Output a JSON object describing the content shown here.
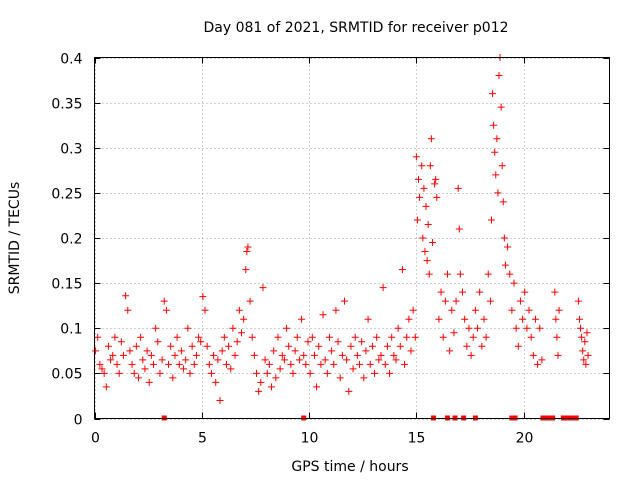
{
  "chart_data": {
    "type": "scatter",
    "title": "Day 081 of 2021, SRMTID for receiver p012",
    "xlabel": "GPS time / hours",
    "ylabel": "SRMTID / TECUs",
    "xlim": [
      0,
      24
    ],
    "ylim": [
      0,
      0.4
    ],
    "x_ticks": [
      "0",
      "5",
      "10",
      "15",
      "20"
    ],
    "x_tick_values": [
      0,
      5,
      10,
      15,
      20
    ],
    "y_ticks": [
      "0",
      "0.05",
      "0.1",
      "0.15",
      "0.2",
      "0.25",
      "0.3",
      "0.35",
      "0.4"
    ],
    "y_tick_values": [
      0,
      0.05,
      0.1,
      0.15,
      0.2,
      0.25,
      0.3,
      0.35,
      0.4
    ],
    "grid": true,
    "marker_color": "#ff0000",
    "series": [
      {
        "name": "SRMTID",
        "marker": "plus",
        "points": [
          [
            0.05,
            0.075
          ],
          [
            0.15,
            0.09
          ],
          [
            0.25,
            0.06
          ],
          [
            0.35,
            0.055
          ],
          [
            0.45,
            0.05
          ],
          [
            0.55,
            0.035
          ],
          [
            0.65,
            0.08
          ],
          [
            0.75,
            0.065
          ],
          [
            0.85,
            0.07
          ],
          [
            0.95,
            0.09
          ],
          [
            1.05,
            0.06
          ],
          [
            1.15,
            0.05
          ],
          [
            1.25,
            0.085
          ],
          [
            1.35,
            0.07
          ],
          [
            1.45,
            0.136
          ],
          [
            1.55,
            0.12
          ],
          [
            1.65,
            0.075
          ],
          [
            1.75,
            0.06
          ],
          [
            1.85,
            0.05
          ],
          [
            1.95,
            0.08
          ],
          [
            2.05,
            0.045
          ],
          [
            2.15,
            0.09
          ],
          [
            2.25,
            0.065
          ],
          [
            2.35,
            0.055
          ],
          [
            2.45,
            0.075
          ],
          [
            2.55,
            0.04
          ],
          [
            2.65,
            0.07
          ],
          [
            2.75,
            0.06
          ],
          [
            2.85,
            0.1
          ],
          [
            2.95,
            0.085
          ],
          [
            3.05,
            0.05
          ],
          [
            3.15,
            0.065
          ],
          [
            3.25,
            0.13
          ],
          [
            3.35,
            0.12
          ],
          [
            3.45,
            0.06
          ],
          [
            3.55,
            0.08
          ],
          [
            3.65,
            0.045
          ],
          [
            3.75,
            0.07
          ],
          [
            3.85,
            0.09
          ],
          [
            3.95,
            0.06
          ],
          [
            4.05,
            0.075
          ],
          [
            4.15,
            0.055
          ],
          [
            4.25,
            0.065
          ],
          [
            4.35,
            0.1
          ],
          [
            4.45,
            0.05
          ],
          [
            4.55,
            0.08
          ],
          [
            4.65,
            0.06
          ],
          [
            4.75,
            0.07
          ],
          [
            4.85,
            0.09
          ],
          [
            4.95,
            0.085
          ],
          [
            5.05,
            0.135
          ],
          [
            5.15,
            0.12
          ],
          [
            5.25,
            0.08
          ],
          [
            5.35,
            0.06
          ],
          [
            5.45,
            0.05
          ],
          [
            5.55,
            0.07
          ],
          [
            5.65,
            0.04
          ],
          [
            5.75,
            0.065
          ],
          [
            5.85,
            0.02
          ],
          [
            5.95,
            0.075
          ],
          [
            6.05,
            0.09
          ],
          [
            6.15,
            0.06
          ],
          [
            6.25,
            0.08
          ],
          [
            6.35,
            0.055
          ],
          [
            6.45,
            0.1
          ],
          [
            6.55,
            0.07
          ],
          [
            6.65,
            0.085
          ],
          [
            6.75,
            0.12
          ],
          [
            6.85,
            0.095
          ],
          [
            6.95,
            0.11
          ],
          [
            7.05,
            0.165
          ],
          [
            7.1,
            0.185
          ],
          [
            7.15,
            0.19
          ],
          [
            7.25,
            0.13
          ],
          [
            7.35,
            0.09
          ],
          [
            7.45,
            0.07
          ],
          [
            7.55,
            0.05
          ],
          [
            7.65,
            0.03
          ],
          [
            7.75,
            0.04
          ],
          [
            7.85,
            0.145
          ],
          [
            7.95,
            0.065
          ],
          [
            8.05,
            0.05
          ],
          [
            8.15,
            0.06
          ],
          [
            8.25,
            0.035
          ],
          [
            8.35,
            0.075
          ],
          [
            8.45,
            0.045
          ],
          [
            8.55,
            0.09
          ],
          [
            8.65,
            0.055
          ],
          [
            8.75,
            0.07
          ],
          [
            8.85,
            0.065
          ],
          [
            8.95,
            0.1
          ],
          [
            9.05,
            0.08
          ],
          [
            9.15,
            0.06
          ],
          [
            9.25,
            0.05
          ],
          [
            9.35,
            0.075
          ],
          [
            9.45,
            0.09
          ],
          [
            9.55,
            0.065
          ],
          [
            9.65,
            0.11
          ],
          [
            9.75,
            0.07
          ],
          [
            9.85,
            0.06
          ],
          [
            9.95,
            0.085
          ],
          [
            10.05,
            0.05
          ],
          [
            10.15,
            0.09
          ],
          [
            10.25,
            0.07
          ],
          [
            10.35,
            0.035
          ],
          [
            10.45,
            0.08
          ],
          [
            10.55,
            0.06
          ],
          [
            10.65,
            0.115
          ],
          [
            10.75,
            0.065
          ],
          [
            10.85,
            0.05
          ],
          [
            10.95,
            0.09
          ],
          [
            11.05,
            0.075
          ],
          [
            11.15,
            0.06
          ],
          [
            11.25,
            0.12
          ],
          [
            11.35,
            0.085
          ],
          [
            11.45,
            0.045
          ],
          [
            11.55,
            0.07
          ],
          [
            11.65,
            0.13
          ],
          [
            11.75,
            0.065
          ],
          [
            11.85,
            0.03
          ],
          [
            11.95,
            0.08
          ],
          [
            12.05,
            0.055
          ],
          [
            12.15,
            0.09
          ],
          [
            12.25,
            0.07
          ],
          [
            12.35,
            0.06
          ],
          [
            12.45,
            0.085
          ],
          [
            12.55,
            0.045
          ],
          [
            12.65,
            0.075
          ],
          [
            12.75,
            0.11
          ],
          [
            12.85,
            0.06
          ],
          [
            12.95,
            0.08
          ],
          [
            13.05,
            0.05
          ],
          [
            13.15,
            0.09
          ],
          [
            13.25,
            0.065
          ],
          [
            13.35,
            0.07
          ],
          [
            13.45,
            0.145
          ],
          [
            13.55,
            0.06
          ],
          [
            13.65,
            0.08
          ],
          [
            13.75,
            0.05
          ],
          [
            13.85,
            0.09
          ],
          [
            13.95,
            0.07
          ],
          [
            14.05,
            0.065
          ],
          [
            14.15,
            0.1
          ],
          [
            14.25,
            0.08
          ],
          [
            14.35,
            0.165
          ],
          [
            14.45,
            0.06
          ],
          [
            14.55,
            0.09
          ],
          [
            14.65,
            0.11
          ],
          [
            14.75,
            0.075
          ],
          [
            14.85,
            0.12
          ],
          [
            14.95,
            0.09
          ],
          [
            15.0,
            0.29
          ],
          [
            15.05,
            0.22
          ],
          [
            15.1,
            0.265
          ],
          [
            15.15,
            0.245
          ],
          [
            15.25,
            0.28
          ],
          [
            15.3,
            0.2
          ],
          [
            15.35,
            0.255
          ],
          [
            15.4,
            0.185
          ],
          [
            15.45,
            0.235
          ],
          [
            15.5,
            0.175
          ],
          [
            15.55,
            0.215
          ],
          [
            15.6,
            0.16
          ],
          [
            15.65,
            0.28
          ],
          [
            15.7,
            0.31
          ],
          [
            15.75,
            0.195
          ],
          [
            15.85,
            0.26
          ],
          [
            15.9,
            0.265
          ],
          [
            15.95,
            0.245
          ],
          [
            16.05,
            0.11
          ],
          [
            16.15,
            0.14
          ],
          [
            16.25,
            0.09
          ],
          [
            16.35,
            0.13
          ],
          [
            16.45,
            0.16
          ],
          [
            16.55,
            0.075
          ],
          [
            16.65,
            0.12
          ],
          [
            16.75,
            0.095
          ],
          [
            16.85,
            0.13
          ],
          [
            16.95,
            0.255
          ],
          [
            17.0,
            0.21
          ],
          [
            17.05,
            0.16
          ],
          [
            17.15,
            0.14
          ],
          [
            17.25,
            0.11
          ],
          [
            17.35,
            0.08
          ],
          [
            17.45,
            0.1
          ],
          [
            17.55,
            0.07
          ],
          [
            17.65,
            0.09
          ],
          [
            17.75,
            0.12
          ],
          [
            17.85,
            0.1
          ],
          [
            17.95,
            0.14
          ],
          [
            18.05,
            0.08
          ],
          [
            18.15,
            0.11
          ],
          [
            18.25,
            0.09
          ],
          [
            18.35,
            0.16
          ],
          [
            18.45,
            0.13
          ],
          [
            18.5,
            0.22
          ],
          [
            18.55,
            0.36
          ],
          [
            18.6,
            0.325
          ],
          [
            18.65,
            0.295
          ],
          [
            18.7,
            0.27
          ],
          [
            18.75,
            0.31
          ],
          [
            18.8,
            0.25
          ],
          [
            18.85,
            0.38
          ],
          [
            18.9,
            0.4
          ],
          [
            18.95,
            0.345
          ],
          [
            19.0,
            0.28
          ],
          [
            19.05,
            0.24
          ],
          [
            19.1,
            0.2
          ],
          [
            19.15,
            0.17
          ],
          [
            19.25,
            0.19
          ],
          [
            19.35,
            0.16
          ],
          [
            19.45,
            0.12
          ],
          [
            19.55,
            0.15
          ],
          [
            19.65,
            0.1
          ],
          [
            19.75,
            0.08
          ],
          [
            19.85,
            0.13
          ],
          [
            19.95,
            0.11
          ],
          [
            20.05,
            0.14
          ],
          [
            20.15,
            0.1
          ],
          [
            20.25,
            0.12
          ],
          [
            20.35,
            0.09
          ],
          [
            20.45,
            0.07
          ],
          [
            20.55,
            0.11
          ],
          [
            20.65,
            0.06
          ],
          [
            20.75,
            0.1
          ],
          [
            20.85,
            0.065
          ],
          [
            21.45,
            0.14
          ],
          [
            21.5,
            0.11
          ],
          [
            21.55,
            0.09
          ],
          [
            21.6,
            0.07
          ],
          [
            21.65,
            0.12
          ],
          [
            22.55,
            0.13
          ],
          [
            22.6,
            0.11
          ],
          [
            22.65,
            0.1
          ],
          [
            22.7,
            0.09
          ],
          [
            22.75,
            0.075
          ],
          [
            22.8,
            0.065
          ],
          [
            22.85,
            0.085
          ],
          [
            22.9,
            0.06
          ],
          [
            22.95,
            0.095
          ],
          [
            23.0,
            0.07
          ]
        ]
      }
    ],
    "gap_markers_x": [
      3.25,
      9.75,
      15.8,
      16.45,
      16.8,
      17.2,
      17.75,
      19.45,
      19.6,
      20.9,
      21.05,
      21.2,
      21.35,
      21.85,
      22.0,
      22.15,
      22.3,
      22.45
    ]
  }
}
